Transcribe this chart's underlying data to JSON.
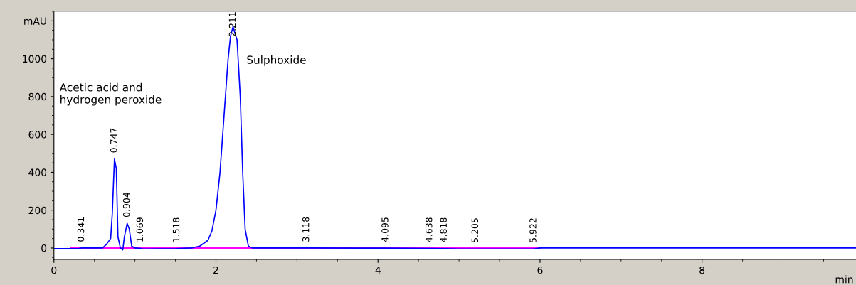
{
  "chart_data": {
    "type": "line",
    "xlabel": "min",
    "xlim": [
      0,
      9.9
    ],
    "ylim": [
      -60,
      1250
    ],
    "xticks": [
      0,
      2,
      4,
      6,
      8
    ],
    "yticks": [
      0,
      200,
      400,
      600,
      800,
      1000,
      {
        "value": 1200,
        "label": "mAU"
      }
    ],
    "grid": false,
    "marker": "none",
    "line_style": "solid",
    "series": [
      {
        "color": "#ff00ff",
        "x": [
          0.22,
          6.0
        ],
        "values": [
          0,
          0
        ]
      },
      {
        "color": "#0000ff",
        "x": [
          0,
          0.3,
          0.341,
          0.6,
          0.65,
          0.7,
          0.72,
          0.747,
          0.77,
          0.79,
          0.82,
          0.85,
          0.87,
          0.904,
          0.93,
          0.96,
          1.0,
          1.069,
          1.1,
          1.518,
          1.7,
          1.8,
          1.9,
          1.95,
          2.0,
          2.05,
          2.1,
          2.15,
          2.18,
          2.211,
          2.23,
          2.26,
          2.3,
          2.33,
          2.36,
          2.4,
          2.45,
          3.0,
          3.118,
          4.095,
          4.638,
          4.818,
          5.0,
          5.205,
          5.4,
          5.922,
          6.0,
          9.9
        ],
        "values": [
          -3,
          -3,
          0,
          0,
          20,
          50,
          180,
          470,
          420,
          60,
          0,
          -10,
          60,
          130,
          100,
          10,
          0,
          -2,
          -5,
          -3,
          0,
          10,
          40,
          90,
          200,
          400,
          700,
          1000,
          1120,
          1170,
          1140,
          1100,
          800,
          400,
          100,
          10,
          0,
          0,
          0,
          -1,
          -2,
          -3,
          -5,
          -5,
          -5,
          -5,
          0,
          0
        ]
      }
    ],
    "annotations": [
      "Acetic acid and\nhydrogen peroxide",
      "Sulphoxide",
      {
        "text": "0.341",
        "x": 0.341,
        "y": 0
      },
      {
        "text": "0.747",
        "x": 0.747,
        "y": 470
      },
      {
        "text": "0.904",
        "x": 0.904,
        "y": 130
      },
      {
        "text": "1.069",
        "x": 1.069,
        "y": -2
      },
      {
        "text": "1.518",
        "x": 1.518,
        "y": -3
      },
      {
        "text": "2.211",
        "x": 2.211,
        "y": 1170
      },
      {
        "text": "3.118",
        "x": 3.118,
        "y": 0
      },
      {
        "text": "4.095",
        "x": 4.095,
        "y": -1
      },
      {
        "text": "4.638",
        "x": 4.638,
        "y": -2
      },
      {
        "text": "4.818",
        "x": 4.818,
        "y": -3
      },
      {
        "text": "5.205",
        "x": 5.205,
        "y": -5
      },
      {
        "text": "5.922",
        "x": 5.922,
        "y": -5
      }
    ]
  }
}
